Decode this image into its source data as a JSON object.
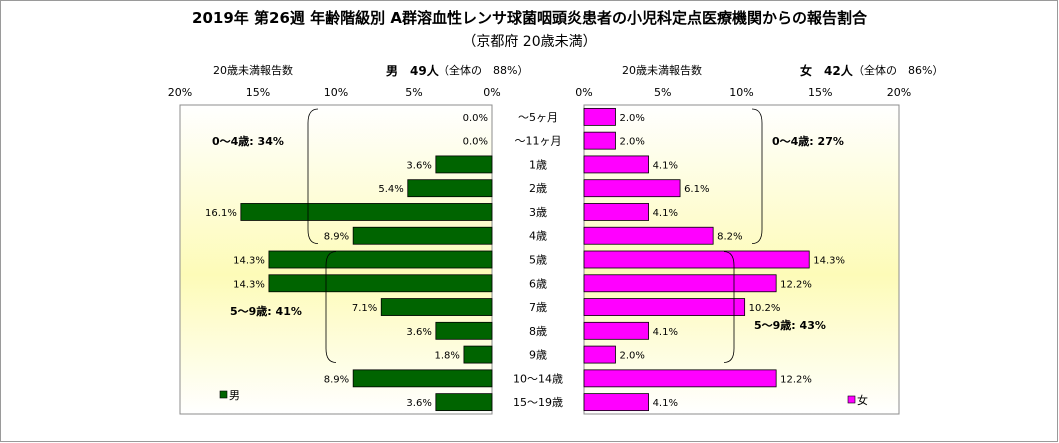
{
  "title": "2019年 第26週 年齢階級別 A群溶血性レンサ球菌咽頭炎患者の小児科定点医療機関からの報告割合",
  "subtitle": "（京都府 20歳未満）",
  "left_header": {
    "caption": "20歳未満報告数",
    "count": "男　49人",
    "share": "（全体の　88%）"
  },
  "right_header": {
    "caption": "20歳未満報告数",
    "count": "女　42人",
    "share": "（全体の　86%）"
  },
  "colors": {
    "male": "#006400",
    "female": "#ff00ff",
    "panel_gradient_top": "#ffffff",
    "panel_gradient_mid": "#fdfbb8",
    "panel_gradient_bottom": "#ffffff"
  },
  "chart_data": {
    "type": "bar",
    "orientation": "horizontal-butterfly",
    "categories": [
      "～5ヶ月",
      "～11ヶ月",
      "1歳",
      "2歳",
      "3歳",
      "4歳",
      "5歳",
      "6歳",
      "7歳",
      "8歳",
      "9歳",
      "10～14歳",
      "15～19歳"
    ],
    "series": [
      {
        "name": "男",
        "side": "left",
        "color": "#006400",
        "values": [
          0.0,
          0.0,
          3.6,
          5.4,
          16.1,
          8.9,
          14.3,
          14.3,
          7.1,
          3.6,
          1.8,
          8.9,
          3.6
        ],
        "labels": [
          "0.0%",
          "0.0%",
          "3.6%",
          "5.4%",
          "16.1%",
          "8.9%",
          "14.3%",
          "14.3%",
          "7.1%",
          "3.6%",
          "1.8%",
          "8.9%",
          "3.6%"
        ]
      },
      {
        "name": "女",
        "side": "right",
        "color": "#ff00ff",
        "values": [
          2.0,
          2.0,
          4.1,
          6.1,
          4.1,
          8.2,
          14.3,
          12.2,
          10.2,
          4.1,
          2.0,
          12.2,
          4.1
        ],
        "labels": [
          "2.0%",
          "2.0%",
          "4.1%",
          "6.1%",
          "4.1%",
          "8.2%",
          "14.3%",
          "12.2%",
          "10.2%",
          "4.1%",
          "2.0%",
          "12.2%",
          "4.1%"
        ]
      }
    ],
    "xlim": [
      0,
      20
    ],
    "left_ticks": [
      "20%",
      "15%",
      "10%",
      "5%",
      "0%"
    ],
    "right_ticks": [
      "0%",
      "5%",
      "10%",
      "15%",
      "20%"
    ],
    "annotations": {
      "male_0_4": "0～4歳: 34%",
      "male_5_9": "5～9歳: 41%",
      "female_0_4": "0～4歳: 27%",
      "female_5_9": "5～9歳: 43%"
    },
    "legend": {
      "male": "男",
      "female": "女",
      "placement": "bottom-left / bottom-right"
    }
  }
}
